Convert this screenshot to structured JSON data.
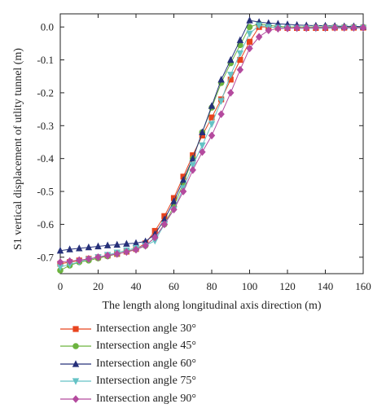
{
  "chart_data": {
    "type": "line",
    "title": "",
    "xlabel": "The length along longitudinal axis direction (m)",
    "ylabel": "S1 vertical displacement of utlity tunnel (m)",
    "xlim": [
      0,
      160
    ],
    "ylim": [
      -0.75,
      0.04
    ],
    "xticks": [
      "0",
      "20",
      "40",
      "60",
      "80",
      "100",
      "120",
      "140",
      "160"
    ],
    "yticks": [
      "0.0",
      "-0.1",
      "-0.2",
      "-0.3",
      "-0.4",
      "-0.5",
      "-0.6",
      "-0.7"
    ],
    "grid": false,
    "legend_position": "below-plot",
    "x": [
      0,
      5,
      10,
      15,
      20,
      25,
      30,
      35,
      40,
      45,
      50,
      55,
      60,
      65,
      70,
      75,
      80,
      85,
      90,
      95,
      100,
      105,
      110,
      115,
      120,
      125,
      130,
      135,
      140,
      145,
      150,
      155,
      160
    ],
    "series": [
      {
        "name": "Intersection angle 30°",
        "color": "#e8441e",
        "marker": "square",
        "values": [
          -0.72,
          -0.715,
          -0.71,
          -0.705,
          -0.7,
          -0.695,
          -0.69,
          -0.683,
          -0.675,
          -0.658,
          -0.62,
          -0.575,
          -0.52,
          -0.455,
          -0.39,
          -0.33,
          -0.275,
          -0.22,
          -0.16,
          -0.1,
          -0.045,
          0.0,
          0.0,
          -0.002,
          -0.003,
          -0.003,
          -0.003,
          -0.003,
          -0.003,
          -0.002,
          -0.002,
          -0.002,
          -0.002
        ]
      },
      {
        "name": "Intersection angle 45°",
        "color": "#6cb33e",
        "marker": "circle",
        "values": [
          -0.74,
          -0.725,
          -0.715,
          -0.71,
          -0.703,
          -0.697,
          -0.69,
          -0.683,
          -0.676,
          -0.665,
          -0.64,
          -0.6,
          -0.545,
          -0.475,
          -0.4,
          -0.32,
          -0.245,
          -0.17,
          -0.11,
          -0.055,
          0.0,
          0.01,
          0.005,
          0.002,
          0.0,
          0.0,
          0.0,
          0.0,
          0.0,
          0.0,
          0.0,
          0.0,
          0.0
        ]
      },
      {
        "name": "Intersection angle 60°",
        "color": "#26307a",
        "marker": "triangle-up",
        "values": [
          -0.68,
          -0.676,
          -0.673,
          -0.67,
          -0.667,
          -0.664,
          -0.662,
          -0.659,
          -0.657,
          -0.652,
          -0.63,
          -0.585,
          -0.53,
          -0.465,
          -0.4,
          -0.32,
          -0.24,
          -0.16,
          -0.1,
          -0.04,
          0.02,
          0.015,
          0.012,
          0.01,
          0.008,
          0.006,
          0.005,
          0.004,
          0.004,
          0.003,
          0.002,
          0.002,
          0.001
        ]
      },
      {
        "name": "Intersection angle 75°",
        "color": "#65c2c5",
        "marker": "triangle-down",
        "values": [
          -0.73,
          -0.722,
          -0.714,
          -0.707,
          -0.7,
          -0.693,
          -0.686,
          -0.679,
          -0.672,
          -0.665,
          -0.65,
          -0.6,
          -0.555,
          -0.49,
          -0.42,
          -0.36,
          -0.295,
          -0.225,
          -0.145,
          -0.08,
          -0.02,
          0.005,
          0.0,
          -0.002,
          -0.003,
          -0.004,
          -0.004,
          -0.004,
          -0.004,
          -0.003,
          -0.003,
          -0.003,
          -0.003
        ]
      },
      {
        "name": "Intersection angle 90°",
        "color": "#b44a9e",
        "marker": "diamond",
        "values": [
          -0.715,
          -0.712,
          -0.709,
          -0.705,
          -0.7,
          -0.695,
          -0.69,
          -0.684,
          -0.677,
          -0.665,
          -0.64,
          -0.6,
          -0.555,
          -0.5,
          -0.435,
          -0.38,
          -0.33,
          -0.265,
          -0.2,
          -0.13,
          -0.065,
          -0.03,
          -0.01,
          -0.005,
          -0.004,
          -0.003,
          -0.003,
          -0.002,
          -0.002,
          -0.002,
          -0.002,
          -0.002,
          -0.002
        ]
      }
    ]
  }
}
